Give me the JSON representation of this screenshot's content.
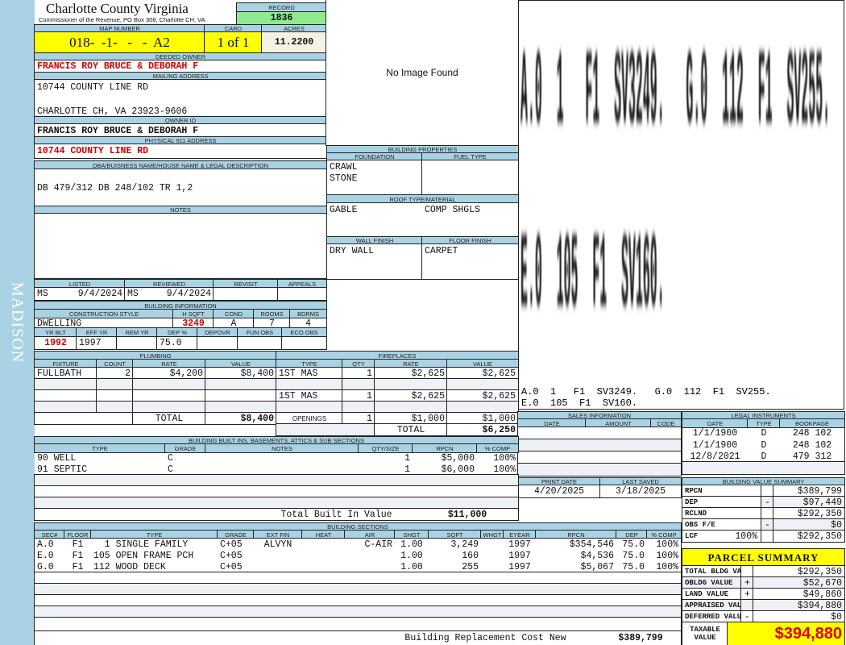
{
  "sidebar_label": "MADISON",
  "header": {
    "title": "Charlotte County Virginia",
    "subtitle": "Commissioner of the Revenue, PO Box 308, Charlotte CH, VA",
    "record_label": "RECORD",
    "record": "1836",
    "map_number_label": "MAP NUMBER",
    "map_number": "018-  -1-   -   -  A2",
    "card_label": "CARD",
    "card": "1 of 1",
    "acres_label": "ACRES",
    "acres": "11.2200"
  },
  "owner": {
    "deeded_label": "DEEDED OWNER",
    "deeded": "FRANCIS ROY BRUCE & DEBORAH F",
    "mailing_label": "MAILING ADDRESS",
    "mailing_line1": "10744 COUNTY LINE RD",
    "mailing_line2": "CHARLOTTE CH, VA 23923-9606",
    "owner_id_label": "OWNER ID",
    "owner_id": "FRANCIS ROY BRUCE & DEBORAH F",
    "physical_label": "PHYSICAL 911 ADDRESS",
    "physical": "10744 COUNTY LINE RD",
    "dba_label": "DBA/BUISNESS NAME/HOUSE NAME & LEGAL DESCRIPTION",
    "dba": "DB 479/312 DB 248/102 TR 1,2",
    "notes_label": "NOTES"
  },
  "photo": {
    "text": "No Image Found"
  },
  "sketch": {
    "lines": [
      "A.0  1   F1  SV3249.   G.0  112  F1  SV255.",
      "E.0  105  F1  SV160."
    ]
  },
  "building_properties": {
    "title": "BUILDING PROPERTIES",
    "foundation_label": "FOUNDATION",
    "fuel_label": "FUEL TYPE",
    "foundation": [
      "CRAWL",
      "STONE"
    ],
    "roof_label": "ROOF TYPE/MATERIAL",
    "roof_type": "GABLE",
    "roof_material": "COMP SHGLS",
    "wall_label": "WALL FINISH",
    "floor_label": "FLOOR FINISH",
    "wall": "DRY WALL",
    "floor": "CARPET"
  },
  "review": {
    "headers": [
      "LISTED",
      "REVIEWED",
      "REVISIT",
      "APPEALS"
    ],
    "listed_by": "MS",
    "listed": "9/4/2024",
    "reviewed_by": "MS",
    "reviewed": "9/4/2024"
  },
  "building_info": {
    "title": "BUILDING INFORMATION",
    "headers1": [
      "CONSTRUCTION STYLE",
      "H SQFT",
      "COND",
      "ROOMS",
      "BDRMS"
    ],
    "values1": [
      "DWELLING",
      "3249",
      "A",
      "7",
      "4"
    ],
    "headers2": [
      "YR BLT",
      "EFF YR",
      "REM YR",
      "DEP %",
      "DEPOVR",
      "FUN OBS",
      "ECO OBS"
    ],
    "values2": [
      "1992",
      "1997",
      "",
      "75.0",
      "",
      "",
      ""
    ]
  },
  "plumbing": {
    "title": "PLUMBING",
    "headers": [
      "FIXTURE",
      "COUNT",
      "RATE",
      "VALUE"
    ],
    "rows": [
      [
        "FULLBATH",
        "2",
        "$4,200",
        "$8,400"
      ]
    ],
    "total_label": "TOTAL",
    "total": "$8,400"
  },
  "fireplaces": {
    "title": "FIREPLACES",
    "headers": [
      "TYPE",
      "QTY",
      "RATE",
      "VALUE"
    ],
    "rows": [
      [
        "1ST MAS",
        "1",
        "$2,625",
        "$2,625"
      ],
      [
        "1ST MAS",
        "1",
        "$2,625",
        "$2,625"
      ]
    ],
    "openings": [
      "OPENINGS",
      "1",
      "$1,000",
      "$1,000"
    ],
    "total_label": "TOTAL",
    "total": "$6,250"
  },
  "sales": {
    "title": "SALES INFORMATION",
    "headers": [
      "DATE",
      "AMOUNT",
      "CODE"
    ]
  },
  "legal": {
    "title": "LEGAL INSTRUMENTS",
    "headers": [
      "DATE",
      "TYPE",
      "BOOKPAGE"
    ],
    "rows": [
      [
        "1/1/1900",
        "D",
        "248 102"
      ],
      [
        "1/1/1900",
        "D",
        "248 102"
      ],
      [
        "12/8/2021",
        "D",
        "479 312"
      ]
    ]
  },
  "dates": {
    "print_label": "PRINT DATE",
    "print": "4/20/2025",
    "saved_label": "LAST SAVED",
    "saved": "3/18/2025"
  },
  "value_summary": {
    "title": "BUILDING VALUE SUMMARY",
    "rows": [
      {
        "label": "RPCN",
        "pct": "",
        "sign": "",
        "value": "$389,799"
      },
      {
        "label": "DEP",
        "pct": "",
        "sign": "-",
        "value": "$97,449"
      },
      {
        "label": "RCLND",
        "pct": "",
        "sign": "",
        "value": "$292,350"
      },
      {
        "label": "OBS F/E",
        "pct": "",
        "sign": "-",
        "value": "$0"
      },
      {
        "label": "LCF",
        "pct": "100%",
        "sign": "",
        "value": "$292,350"
      }
    ]
  },
  "built_ins": {
    "title": "BUILDING BUILT INS, BASEMENTS, ATTICS & SUB SECTIONS",
    "headers": [
      "TYPE",
      "GRADE",
      "NOTES",
      "QTY/SIZE",
      "RPCN",
      "% COMP"
    ],
    "rows": [
      [
        "90 WELL",
        "C",
        "",
        "1",
        "$5,000",
        "100%"
      ],
      [
        "91 SEPTIC",
        "C",
        "",
        "1",
        "$6,000",
        "100%"
      ]
    ],
    "total_label": "Total Built In Value",
    "total": "$11,000"
  },
  "sections": {
    "title": "BUILDING SECTIONS",
    "headers": [
      "SEC#",
      "FLOOR",
      "TYPE",
      "GRADE",
      "EXT FIN",
      "HEAT",
      "AIR",
      "SHGT",
      "SQFT",
      "WHGT",
      "EYEAR",
      "RPCN",
      "DEP",
      "% COMP"
    ],
    "rows": [
      [
        "A.0",
        "F1",
        "  1 SINGLE FAMILY",
        "C+05",
        "ALVYN",
        "",
        "C-AIR",
        "1.00",
        "3,249",
        "",
        "1997",
        "$354,546",
        "75.0",
        "100%"
      ],
      [
        "E.0",
        "F1",
        "105 OPEN FRAME PCH",
        "C+05",
        "",
        "",
        "",
        "1.00",
        "160",
        "",
        "1997",
        "$4,536",
        "75.0",
        "100%"
      ],
      [
        "G.0",
        "F1",
        "112 WOOD DECK",
        "C+05",
        "",
        "",
        "",
        "1.00",
        "255",
        "",
        "1997",
        "$5,067",
        "75.0",
        "100%"
      ]
    ],
    "total_label": "Building Replacement Cost New",
    "total": "$389,799"
  },
  "parcel": {
    "title": "PARCEL SUMMARY",
    "rows": [
      {
        "label": "TOTAL BLDG VALUE",
        "sign": "",
        "value": "$292,350"
      },
      {
        "label": "OBLDG VALUE",
        "sign": "+",
        "value": "$52,670"
      },
      {
        "label": "LAND VALUE",
        "sign": "+",
        "value": "$49,860"
      },
      {
        "label": "APPRAISED VALUE",
        "sign": "",
        "value": "$394,880"
      },
      {
        "label": "DEFERRED VALUE",
        "sign": "-",
        "value": "$0"
      }
    ],
    "taxable_label": "TAXABLE\nVALUE",
    "taxable": "$394,880"
  }
}
